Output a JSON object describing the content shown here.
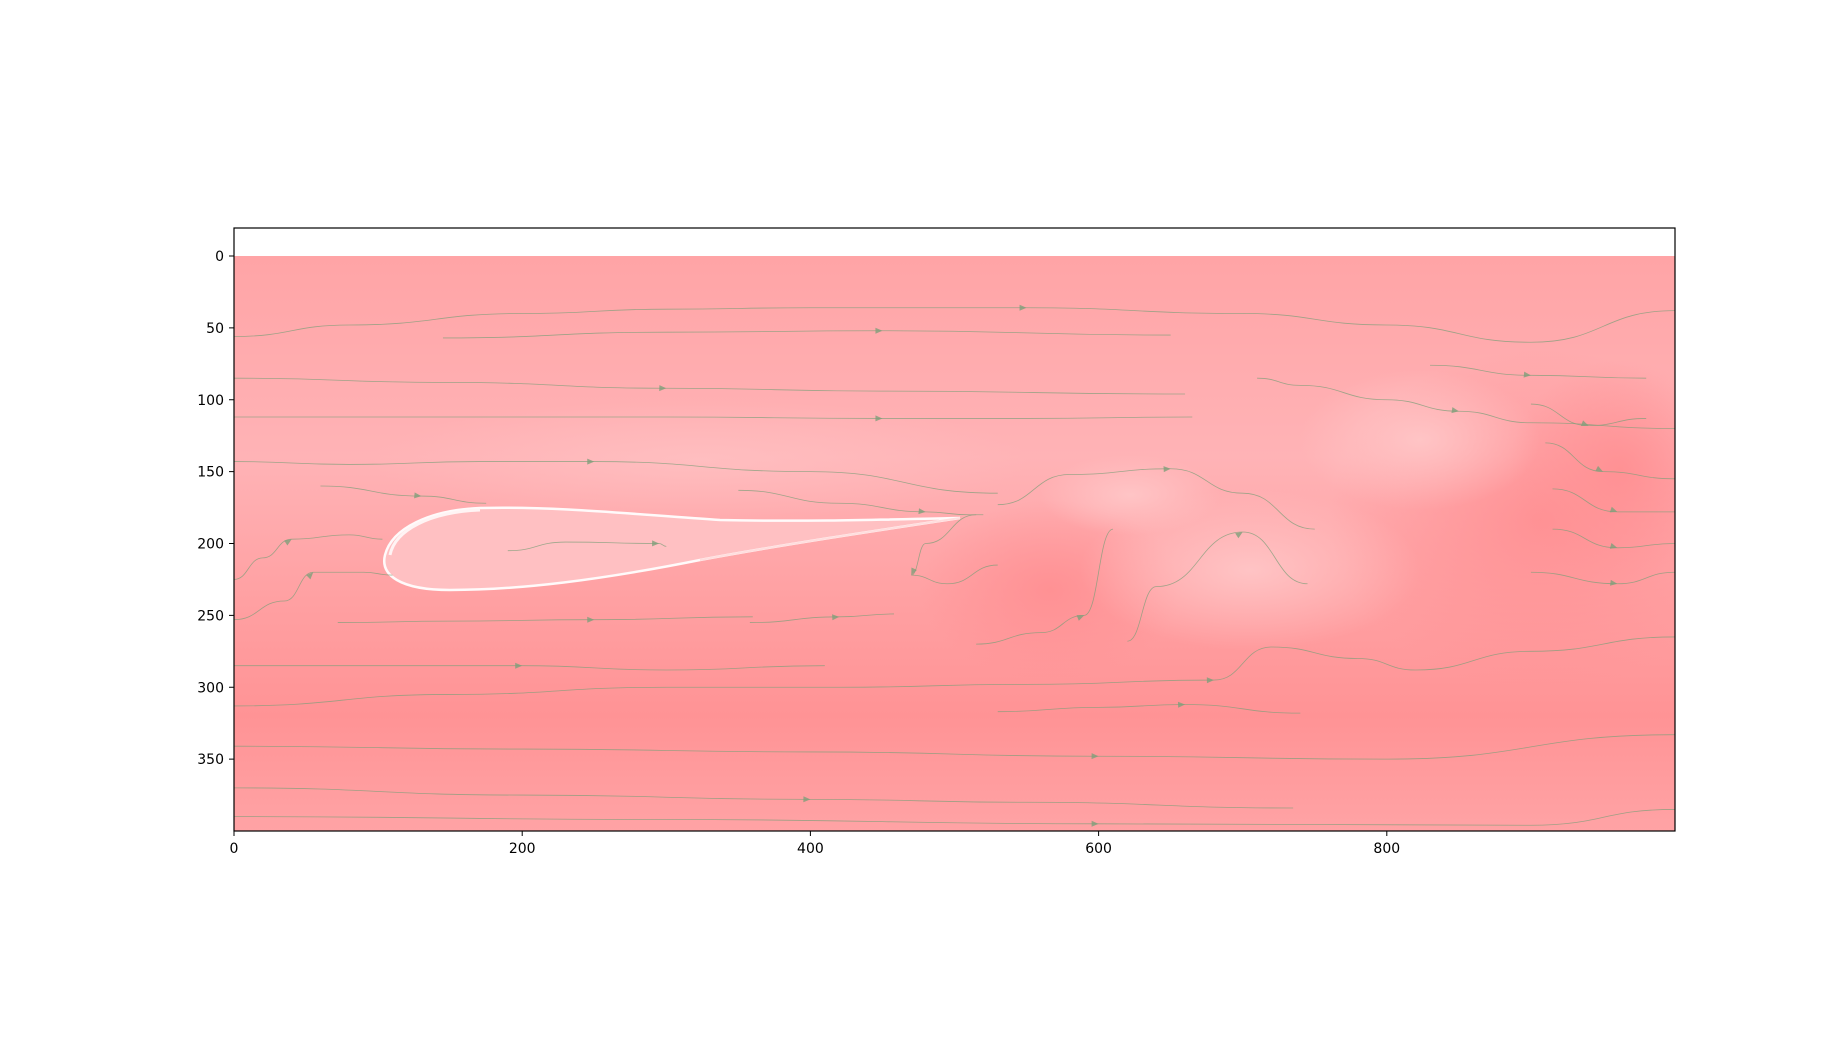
{
  "chart_data": {
    "type": "heatmap",
    "subtype": "flow field image with streamlines (airfoil wake)",
    "title": "",
    "xlabel": "",
    "ylabel": "",
    "xlim": [
      0,
      1000
    ],
    "ylim": [
      400,
      0
    ],
    "y_axis_inverted": true,
    "xticks": [
      0,
      200,
      400,
      600,
      800
    ],
    "xtick_labels": [
      "0",
      "200",
      "400",
      "600",
      "800"
    ],
    "yticks": [
      0,
      50,
      100,
      150,
      200,
      250,
      300,
      350
    ],
    "ytick_labels": [
      "0",
      "50",
      "100",
      "150",
      "200",
      "250",
      "300",
      "350"
    ],
    "grid": false,
    "legend": "none",
    "colormap": "reds (light)",
    "colors": {
      "field_light": "#ffb6b9",
      "field_mid": "#ffa3a5",
      "field_dark": "#ff8f92",
      "highlight": "#fff0f0",
      "streamline": "#7f9f7a"
    },
    "streamlines": [
      {
        "x": [
          0,
          80,
          200,
          300,
          400,
          550,
          700,
          800,
          900,
          1000
        ],
        "y": [
          56,
          48,
          40,
          37,
          36,
          36,
          40,
          48,
          60,
          38
        ]
      },
      {
        "x": [
          145,
          300,
          450,
          650
        ],
        "y": [
          57,
          53,
          52,
          55
        ]
      },
      {
        "x": [
          0,
          150,
          300,
          450,
          660
        ],
        "y": [
          85,
          88,
          92,
          94,
          96
        ]
      },
      {
        "x": [
          0,
          150,
          300,
          450,
          550,
          665
        ],
        "y": [
          112,
          112,
          112,
          113,
          113,
          112
        ]
      },
      {
        "x": [
          0,
          80,
          170,
          250,
          400,
          530
        ],
        "y": [
          143,
          145,
          143,
          143,
          150,
          165
        ]
      },
      {
        "x": [
          60,
          130,
          175
        ],
        "y": [
          160,
          167,
          172
        ]
      },
      {
        "x": [
          350,
          420,
          480,
          510,
          520
        ],
        "y": [
          163,
          172,
          178,
          180,
          180
        ]
      },
      {
        "x": [
          0,
          20,
          40,
          80,
          103
        ],
        "y": [
          225,
          210,
          197,
          194,
          197
        ]
      },
      {
        "x": [
          0,
          35,
          55,
          90,
          110
        ],
        "y": [
          253,
          240,
          220,
          220,
          222
        ]
      },
      {
        "x": [
          190,
          230,
          295,
          300
        ],
        "y": [
          205,
          199,
          200,
          202
        ]
      },
      {
        "x": [
          530,
          580,
          650,
          700,
          750
        ],
        "y": [
          173,
          152,
          148,
          165,
          190
        ]
      },
      {
        "x": [
          515,
          480,
          470,
          495,
          530
        ],
        "y": [
          180,
          200,
          222,
          228,
          215
        ]
      },
      {
        "x": [
          710,
          740,
          800,
          850,
          900,
          1000
        ],
        "y": [
          85,
          90,
          100,
          108,
          116,
          120
        ]
      },
      {
        "x": [
          830,
          900,
          980
        ],
        "y": [
          76,
          83,
          85
        ]
      },
      {
        "x": [
          900,
          940,
          980
        ],
        "y": [
          103,
          118,
          113
        ]
      },
      {
        "x": [
          910,
          950,
          1000
        ],
        "y": [
          130,
          150,
          155
        ]
      },
      {
        "x": [
          915,
          960,
          1000
        ],
        "y": [
          162,
          178,
          178
        ]
      },
      {
        "x": [
          915,
          960,
          1000
        ],
        "y": [
          190,
          203,
          200
        ]
      },
      {
        "x": [
          900,
          960,
          1000
        ],
        "y": [
          220,
          228,
          220
        ]
      },
      {
        "x": [
          0,
          100,
          200,
          300,
          410
        ],
        "y": [
          285,
          285,
          285,
          288,
          285
        ]
      },
      {
        "x": [
          0,
          150,
          300,
          420,
          550,
          680,
          720,
          780,
          820,
          900,
          1000
        ],
        "y": [
          313,
          305,
          300,
          300,
          298,
          295,
          272,
          280,
          288,
          275,
          265
        ]
      },
      {
        "x": [
          530,
          600,
          660,
          740
        ],
        "y": [
          317,
          314,
          312,
          318
        ]
      },
      {
        "x": [
          0,
          200,
          400,
          600,
          800,
          1000
        ],
        "y": [
          341,
          343,
          345,
          348,
          350,
          333
        ]
      },
      {
        "x": [
          0,
          200,
          400,
          550,
          735
        ],
        "y": [
          370,
          375,
          378,
          380,
          384
        ]
      },
      {
        "x": [
          0,
          300,
          600,
          900,
          1000
        ],
        "y": [
          390,
          392,
          395,
          396,
          385
        ]
      },
      {
        "x": [
          72,
          150,
          250,
          360
        ],
        "y": [
          255,
          254,
          253,
          251
        ]
      },
      {
        "x": [
          358,
          420,
          458
        ],
        "y": [
          255,
          251,
          249
        ]
      },
      {
        "x": [
          515,
          560,
          590,
          610
        ],
        "y": [
          270,
          262,
          250,
          190
        ]
      },
      {
        "x": [
          620,
          640,
          700,
          745
        ],
        "y": [
          268,
          230,
          192,
          228
        ]
      }
    ]
  }
}
